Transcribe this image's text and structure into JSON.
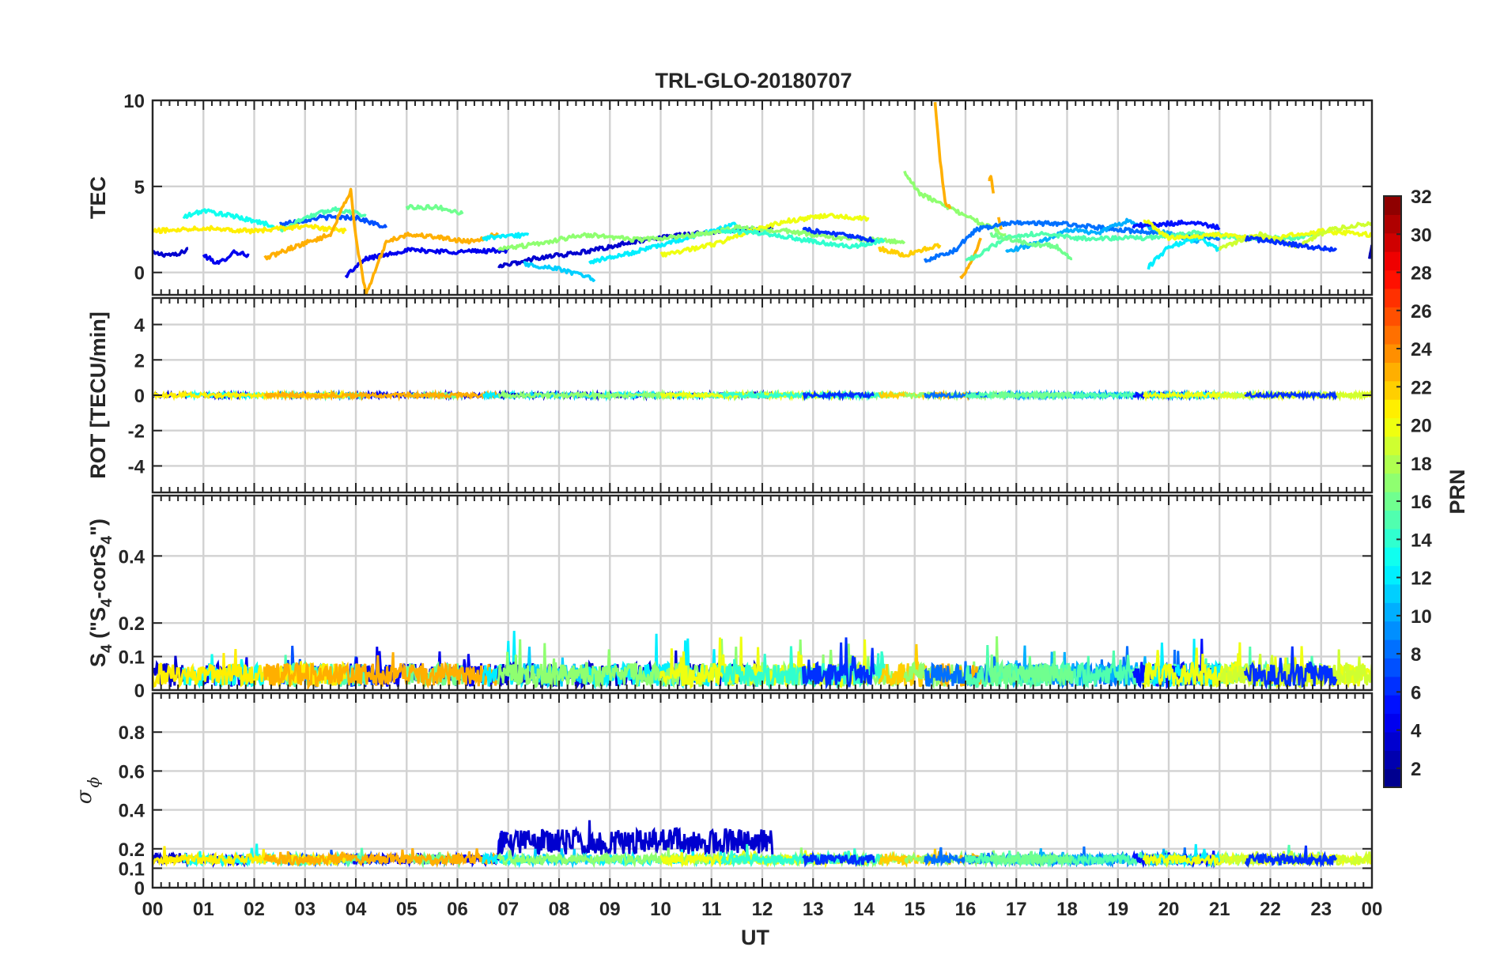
{
  "chart_data": {
    "type": "line",
    "title": "TRL-GLO-20180707",
    "xlabel": "UT",
    "x_tick_labels": [
      "00",
      "01",
      "02",
      "03",
      "04",
      "05",
      "06",
      "07",
      "08",
      "09",
      "10",
      "11",
      "12",
      "13",
      "14",
      "15",
      "16",
      "17",
      "18",
      "19",
      "20",
      "21",
      "22",
      "23",
      "00"
    ],
    "xlim": [
      0,
      24
    ],
    "panels": [
      {
        "name": "tec",
        "ylabel": "TEC",
        "ylim": [
          -1.3,
          10
        ],
        "yticks": [
          0,
          5,
          10
        ],
        "ytick_labels": [
          "0",
          "5",
          "10"
        ]
      },
      {
        "name": "rot",
        "ylabel": "ROT [TECU/min]",
        "ylim": [
          -5.5,
          5.5
        ],
        "yticks": [
          -4,
          -2,
          0,
          2,
          4
        ],
        "ytick_labels": [
          "-4",
          "-2",
          "0",
          "2",
          "4"
        ]
      },
      {
        "name": "s4",
        "ylabel_main": "S",
        "ylabel_sub1": "4",
        "ylabel_mid": " (\"S",
        "ylabel_sub2": "4",
        "ylabel_mid2": "-corS",
        "ylabel_sub3": "4",
        "ylabel_end": "\")",
        "ylim": [
          0,
          0.58
        ],
        "yticks": [
          0,
          0.1,
          0.2,
          0.4
        ],
        "ytick_labels": [
          "0",
          "0.1",
          "0.2",
          "0.4"
        ]
      },
      {
        "name": "sigma",
        "ylabel_main": "σ",
        "ylabel_sub": "ϕ",
        "ylim": [
          0,
          1.0
        ],
        "yticks": [
          0,
          0.1,
          0.2,
          0.4,
          0.6,
          0.8
        ],
        "ytick_labels": [
          "0",
          "0.1",
          "0.2",
          "0.4",
          "0.6",
          "0.8"
        ]
      }
    ],
    "colorbar": {
      "label": "PRN",
      "range": [
        1,
        32
      ],
      "tick_labels": [
        "2",
        "4",
        "6",
        "8",
        "10",
        "12",
        "14",
        "16",
        "18",
        "20",
        "22",
        "24",
        "26",
        "28",
        "30",
        "32"
      ],
      "colormap": "jet"
    },
    "series": [
      {
        "prn": 3,
        "tec": [
          [
            0,
            1.1
          ],
          [
            0.5,
            1.0
          ],
          [
            0.7,
            1.4
          ]
        ]
      },
      {
        "prn": 4,
        "tec": [
          [
            1.0,
            1.0
          ],
          [
            1.3,
            0.5
          ],
          [
            1.6,
            1.2
          ],
          [
            1.9,
            1.0
          ]
        ]
      },
      {
        "prn": 7,
        "tec": [
          [
            2.5,
            2.8
          ],
          [
            3.3,
            3.2
          ],
          [
            4.0,
            3.2
          ],
          [
            4.6,
            2.6
          ]
        ]
      },
      {
        "prn": 4,
        "tec": [
          [
            3.8,
            -0.2
          ],
          [
            4.2,
            0.8
          ],
          [
            5.0,
            1.3
          ],
          [
            6.0,
            1.2
          ],
          [
            7.0,
            1.3
          ]
        ]
      },
      {
        "prn": 13,
        "tec": [
          [
            0.6,
            3.2
          ],
          [
            1.0,
            3.6
          ],
          [
            1.7,
            3.2
          ],
          [
            2.4,
            2.7
          ]
        ]
      },
      {
        "prn": 15,
        "tec": [
          [
            2.5,
            2.4
          ],
          [
            3.0,
            3.2
          ],
          [
            3.6,
            3.7
          ],
          [
            4.2,
            3.3
          ]
        ]
      },
      {
        "prn": 16,
        "tec": [
          [
            5.0,
            3.8
          ],
          [
            5.6,
            3.8
          ],
          [
            6.1,
            3.4
          ]
        ]
      },
      {
        "prn": 21,
        "tec": [
          [
            0,
            2.4
          ],
          [
            1.0,
            2.6
          ],
          [
            2.0,
            2.4
          ],
          [
            3.0,
            2.7
          ],
          [
            3.8,
            2.4
          ]
        ]
      },
      {
        "prn": 23,
        "tec": [
          [
            2.2,
            0.8
          ],
          [
            2.8,
            1.5
          ],
          [
            3.5,
            2.2
          ],
          [
            3.9,
            4.8
          ],
          [
            4.0,
            2.0
          ],
          [
            4.2,
            -1.3
          ],
          [
            4.6,
            1.8
          ],
          [
            5.0,
            2.2
          ],
          [
            5.5,
            2.1
          ],
          [
            6.2,
            1.8
          ],
          [
            6.8,
            2.2
          ]
        ]
      },
      {
        "prn": 12,
        "tec": [
          [
            6.5,
            2.0
          ],
          [
            7.0,
            2.1
          ],
          [
            7.4,
            2.2
          ]
        ]
      },
      {
        "prn": 3,
        "tec": [
          [
            6.8,
            0.3
          ],
          [
            7.5,
            0.8
          ],
          [
            8.5,
            1.2
          ],
          [
            9.5,
            1.8
          ],
          [
            10.5,
            2.2
          ],
          [
            11.5,
            2.5
          ],
          [
            12.2,
            2.5
          ]
        ]
      },
      {
        "prn": 11,
        "tec": [
          [
            7.3,
            0.5
          ],
          [
            8.0,
            0.2
          ],
          [
            8.7,
            -0.4
          ]
        ]
      },
      {
        "prn": 12,
        "tec": [
          [
            8.6,
            0.6
          ],
          [
            9.5,
            1.2
          ],
          [
            10.5,
            2.0
          ],
          [
            11.0,
            2.4
          ],
          [
            11.5,
            2.8
          ]
        ]
      },
      {
        "prn": 17,
        "tec": [
          [
            6.8,
            1.3
          ],
          [
            7.8,
            1.8
          ],
          [
            8.5,
            2.2
          ],
          [
            9.5,
            1.9
          ],
          [
            10.5,
            2.1
          ],
          [
            11.5,
            2.6
          ],
          [
            12.5,
            2.4
          ],
          [
            13.5,
            2.0
          ],
          [
            14.8,
            1.8
          ]
        ]
      },
      {
        "prn": 20,
        "tec": [
          [
            10.0,
            1.0
          ],
          [
            11.0,
            1.6
          ],
          [
            12.0,
            2.6
          ],
          [
            12.5,
            3.0
          ],
          [
            13.3,
            3.3
          ],
          [
            14.1,
            3.1
          ]
        ]
      },
      {
        "prn": 14,
        "tec": [
          [
            11.2,
            2.4
          ],
          [
            12.0,
            2.3
          ],
          [
            13.0,
            1.8
          ],
          [
            13.8,
            1.5
          ],
          [
            14.4,
            1.9
          ]
        ]
      },
      {
        "prn": 6,
        "tec": [
          [
            12.8,
            2.5
          ],
          [
            13.5,
            2.2
          ],
          [
            14.2,
            1.9
          ]
        ]
      },
      {
        "prn": 22,
        "tec": [
          [
            14.3,
            1.4
          ],
          [
            14.8,
            1.0
          ],
          [
            15.5,
            1.6
          ]
        ]
      },
      {
        "prn": 17,
        "tec": [
          [
            14.8,
            5.8
          ],
          [
            15.1,
            4.6
          ],
          [
            15.6,
            3.9
          ],
          [
            16.2,
            3.0
          ],
          [
            16.8,
            2.2
          ]
        ]
      },
      {
        "prn": 23,
        "tec": [
          [
            15.4,
            9.8
          ],
          [
            15.5,
            6.5
          ],
          [
            15.6,
            4.0
          ],
          [
            15.7,
            3.7
          ]
        ]
      },
      {
        "prn": 23,
        "tec": [
          [
            15.9,
            -0.3
          ],
          [
            16.1,
            0.5
          ],
          [
            16.3,
            2.0
          ]
        ]
      },
      {
        "prn": 23,
        "tec": [
          [
            16.45,
            5.3
          ],
          [
            16.5,
            5.6
          ],
          [
            16.55,
            4.6
          ]
        ]
      },
      {
        "prn": 23,
        "tec": [
          [
            16.65,
            3.1
          ],
          [
            16.7,
            2.5
          ]
        ]
      },
      {
        "prn": 8,
        "tec": [
          [
            15.2,
            0.7
          ],
          [
            15.8,
            1.3
          ],
          [
            16.2,
            2.5
          ],
          [
            17.0,
            2.9
          ],
          [
            18.0,
            2.8
          ],
          [
            19.0,
            2.5
          ],
          [
            20.0,
            2.2
          ],
          [
            21.0,
            2.0
          ]
        ]
      },
      {
        "prn": 10,
        "tec": [
          [
            16.8,
            1.2
          ],
          [
            17.5,
            1.8
          ],
          [
            18.0,
            2.5
          ],
          [
            18.6,
            2.3
          ],
          [
            19.2,
            3.0
          ],
          [
            19.8,
            2.4
          ],
          [
            20.6,
            1.8
          ]
        ]
      },
      {
        "prn": 15,
        "tec": [
          [
            16.0,
            0.6
          ],
          [
            16.8,
            2.0
          ],
          [
            17.5,
            2.3
          ],
          [
            18.2,
            2.0
          ],
          [
            19.5,
            2.0
          ],
          [
            20.5,
            2.3
          ],
          [
            21.5,
            2.0
          ],
          [
            22.5,
            2.0
          ],
          [
            23.0,
            2.3
          ]
        ]
      },
      {
        "prn": 16,
        "tec": [
          [
            16.5,
            2.2
          ],
          [
            17.2,
            1.7
          ],
          [
            17.8,
            1.5
          ],
          [
            18.1,
            0.8
          ]
        ]
      },
      {
        "prn": 5,
        "tec": [
          [
            19.3,
            2.7
          ],
          [
            19.8,
            2.8
          ],
          [
            20.4,
            2.9
          ],
          [
            21.0,
            2.6
          ]
        ]
      },
      {
        "prn": 12,
        "tec": [
          [
            19.6,
            0.3
          ],
          [
            20.0,
            1.5
          ],
          [
            20.6,
            2.0
          ],
          [
            21.0,
            1.3
          ]
        ]
      },
      {
        "prn": 20,
        "tec": [
          [
            19.5,
            3.1
          ],
          [
            20.0,
            2.0
          ],
          [
            21.0,
            2.2
          ],
          [
            22.0,
            2.0
          ],
          [
            23.0,
            2.4
          ],
          [
            24.0,
            2.2
          ]
        ]
      },
      {
        "prn": 19,
        "tec": [
          [
            21.0,
            1.4
          ],
          [
            21.8,
            2.2
          ],
          [
            22.5,
            1.5
          ],
          [
            23.2,
            2.5
          ],
          [
            24.0,
            2.9
          ]
        ]
      },
      {
        "prn": 6,
        "tec": [
          [
            21.5,
            2.0
          ],
          [
            22.3,
            1.7
          ],
          [
            23.0,
            1.4
          ],
          [
            23.3,
            1.3
          ]
        ]
      },
      {
        "prn": 2,
        "tec": [
          [
            23.95,
            0.9
          ],
          [
            24.0,
            1.6
          ]
        ]
      }
    ]
  }
}
